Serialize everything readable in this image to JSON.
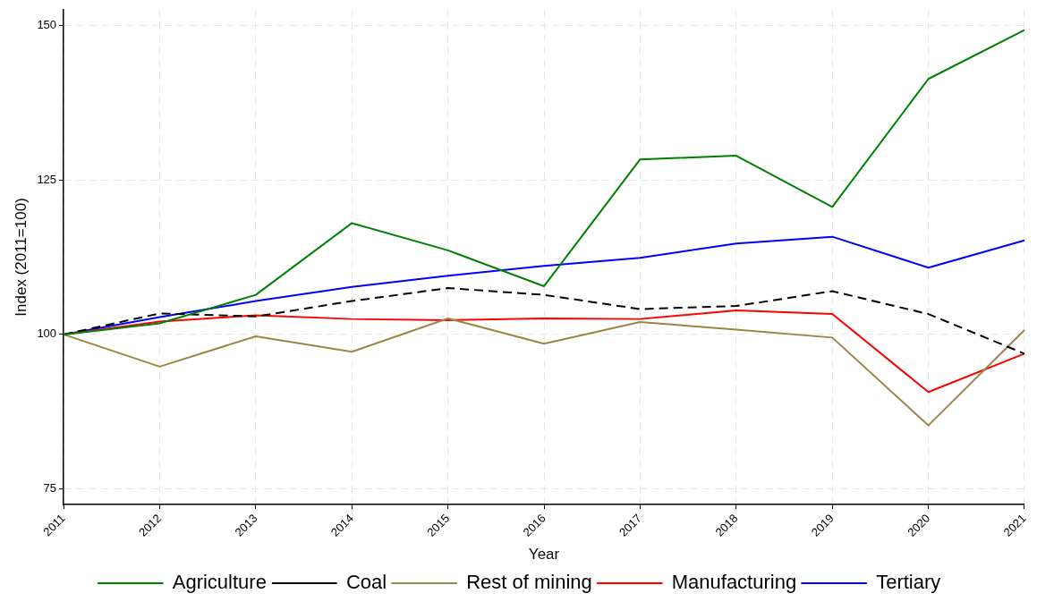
{
  "chart_data": {
    "type": "line",
    "xlabel": "Year",
    "ylabel": "Index (2011=100)",
    "categories": [
      "2011",
      "2012",
      "2013",
      "2014",
      "2015",
      "2016",
      "2017",
      "2018",
      "2019",
      "2020",
      "2021"
    ],
    "series": [
      {
        "name": "Agriculture",
        "color": "#008000",
        "values": [
          100,
          101.8,
          106.4,
          118,
          113.6,
          107.8,
          128.3,
          128.9,
          120.6,
          141.3,
          149.2
        ]
      },
      {
        "name": "Coal",
        "color": "#000000",
        "line_style": "dashed",
        "values": [
          100,
          103.4,
          102.9,
          105.4,
          107.5,
          106.4,
          104.1,
          104.6,
          107.0,
          103.3,
          96.9
        ]
      },
      {
        "name": "Rest of mining",
        "color": "#9c8646",
        "values": [
          100,
          94.8,
          99.7,
          97.2,
          102.6,
          98.5,
          102.0,
          100.8,
          99.5,
          85.3,
          100.7
        ]
      },
      {
        "name": "Manufacturing",
        "color": "#ff0000",
        "values": [
          100,
          102.1,
          103.1,
          102.5,
          102.3,
          102.6,
          102.5,
          103.9,
          103.3,
          90.7,
          96.9
        ]
      },
      {
        "name": "Tertiary",
        "color": "#0000ff",
        "values": [
          100,
          102.8,
          105.4,
          107.7,
          109.5,
          111.1,
          112.4,
          114.7,
          115.8,
          110.8,
          115.2
        ]
      }
    ],
    "ylim": [
      72.5,
      152.5
    ],
    "yticks": [
      75,
      100,
      125,
      150
    ],
    "grid": true,
    "legend": "bottom",
    "marker": "none",
    "line_style": "solid"
  }
}
